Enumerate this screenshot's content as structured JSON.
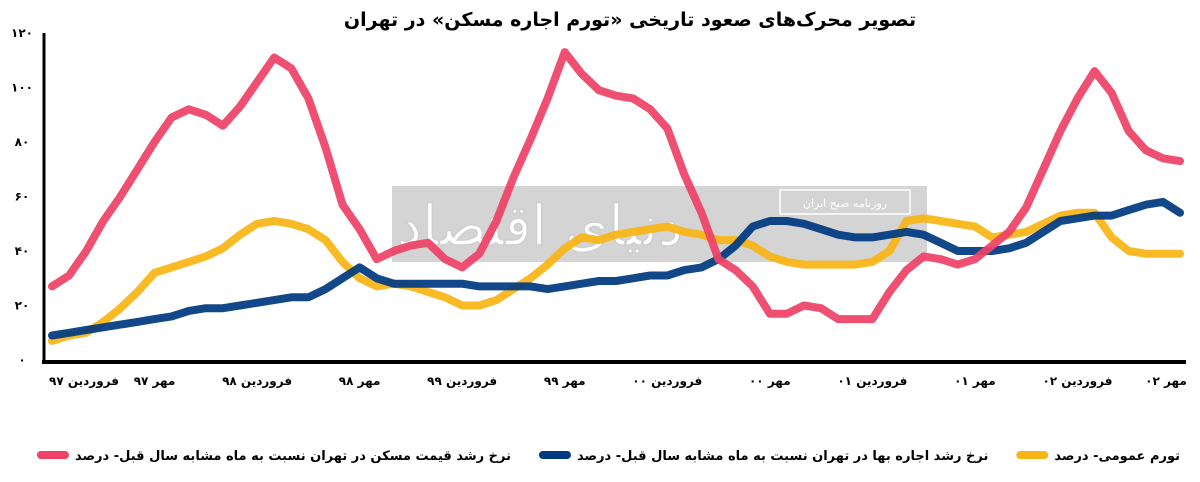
{
  "chart_data": {
    "type": "line",
    "title": "تصویر محرک‌های صعود تاریخی «تورم اجاره مسکن» در تهران",
    "xlabel": "",
    "ylabel": "",
    "ylim": [
      0,
      120
    ],
    "yticks": [
      "۰",
      "۲۰",
      "۴۰",
      "۶۰",
      "۸۰",
      "۱۰۰",
      "۱۲۰"
    ],
    "ytick_values": [
      0,
      20,
      40,
      60,
      80,
      100,
      120
    ],
    "xtick_labels": [
      "فروردین ۹۷",
      "مهر ۹۷",
      "فروردین ۹۸",
      "مهر ۹۸",
      "فروردین ۹۹",
      "مهر ۹۹",
      "فروردین ۰۰",
      "مهر ۰۰",
      "فروردین ۰۱",
      "مهر ۰۱",
      "فروردین ۰۲",
      "مهر ۰۲"
    ],
    "x_frequency": "monthly",
    "grid": false,
    "legend_placement": "bottom",
    "series": [
      {
        "name": "نرخ رشد قیمت مسکن در تهران نسبت به ماه مشابه سال قبل- درصد",
        "color": "#EE4266",
        "values": [
          27,
          31,
          40,
          51,
          60,
          70,
          80,
          89,
          92,
          90,
          86,
          93,
          102,
          111,
          107,
          96,
          78,
          57,
          48,
          37,
          40,
          42,
          43,
          37,
          34,
          39,
          51,
          67,
          81,
          96,
          113,
          105,
          99,
          97,
          96,
          92,
          85,
          68,
          54,
          37,
          33,
          27,
          17,
          17,
          20,
          19,
          15,
          15,
          15,
          25,
          33,
          38,
          37,
          35,
          37,
          42,
          47,
          56,
          70,
          84,
          96,
          106,
          98,
          84,
          77,
          74,
          73
        ]
      },
      {
        "name": "نرخ رشد اجاره بها در تهران نسبت به ماه مشابه سال قبل- درصد",
        "color": "#003A80",
        "values": [
          9,
          10,
          11,
          12,
          13,
          14,
          15,
          16,
          18,
          19,
          19,
          20,
          21,
          22,
          23,
          23,
          26,
          30,
          34,
          30,
          28,
          28,
          28,
          28,
          28,
          27,
          27,
          27,
          27,
          26,
          27,
          28,
          29,
          29,
          30,
          31,
          31,
          33,
          34,
          37,
          42,
          49,
          51,
          51,
          50,
          48,
          46,
          45,
          45,
          46,
          47,
          46,
          43,
          40,
          40,
          40,
          41,
          43,
          47,
          51,
          52,
          53,
          53,
          55,
          57,
          58,
          54
        ]
      },
      {
        "name": "تورم عمومی- درصد",
        "color": "#F9B514",
        "values": [
          7,
          9,
          10,
          14,
          19,
          25,
          32,
          34,
          36,
          38,
          41,
          46,
          50,
          51,
          50,
          48,
          44,
          36,
          30,
          27,
          28,
          27,
          25,
          23,
          20,
          20,
          22,
          26,
          30,
          35,
          41,
          45,
          44,
          46,
          47,
          48,
          49,
          47,
          46,
          44,
          44,
          42,
          38,
          36,
          35,
          35,
          35,
          35,
          36,
          40,
          51,
          52,
          51,
          50,
          49,
          45,
          46,
          47,
          50,
          53,
          54,
          54,
          45,
          40,
          39,
          39,
          39
        ]
      }
    ]
  },
  "watermark": {
    "logo_text": "دنیای اقتصاد",
    "tag_text": "روزنامه صبح ایران"
  }
}
